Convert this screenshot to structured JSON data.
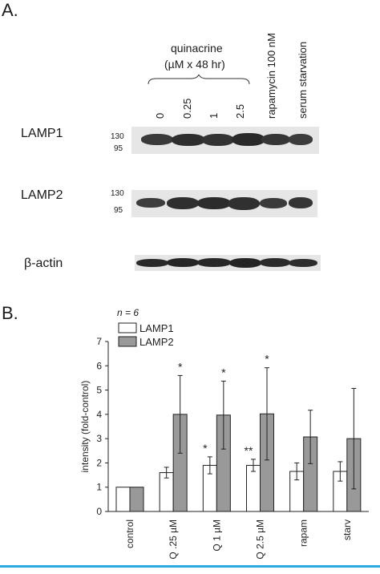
{
  "panel_a": {
    "letter": "A.",
    "treatment_label_line1": "quinacrine",
    "treatment_label_line2": "(µM x 48 hr)",
    "lane_labels": [
      "0",
      "0.25",
      "1",
      "2.5",
      "rapamycin 100 nM",
      "serum starvation"
    ],
    "blots": [
      {
        "name": "LAMP1",
        "mw_markers": [
          "130",
          "95"
        ]
      },
      {
        "name": "LAMP2",
        "mw_markers": [
          "130",
          "95"
        ]
      },
      {
        "name": "β-actin",
        "mw_markers": []
      }
    ]
  },
  "panel_b": {
    "letter": "B.",
    "n_label": "n = 6"
  },
  "chart_data": {
    "type": "bar",
    "categories": [
      "control",
      "Q .25 µM",
      "Q 1 µM",
      "Q 2.5 µM",
      "rapam",
      "starv"
    ],
    "ylabel": "intensity (fold-control)",
    "ylim": [
      0,
      7
    ],
    "yticks": [
      0,
      1,
      2,
      3,
      4,
      5,
      6,
      7
    ],
    "legend_position": "top-left",
    "series": [
      {
        "name": "LAMP1",
        "color": "#ffffff",
        "values": [
          1.0,
          1.6,
          1.9,
          1.9,
          1.65,
          1.65
        ],
        "errors": [
          0,
          0.22,
          0.35,
          0.25,
          0.35,
          0.4
        ],
        "significance": [
          "",
          "",
          "*",
          "**",
          "",
          ""
        ]
      },
      {
        "name": "LAMP2",
        "color": "#999999",
        "values": [
          1.0,
          4.0,
          3.97,
          4.02,
          3.07,
          3.0
        ],
        "errors": [
          0,
          1.6,
          1.4,
          1.9,
          1.1,
          2.07
        ],
        "significance": [
          "",
          "*",
          "*",
          "*",
          "",
          ""
        ]
      }
    ]
  }
}
